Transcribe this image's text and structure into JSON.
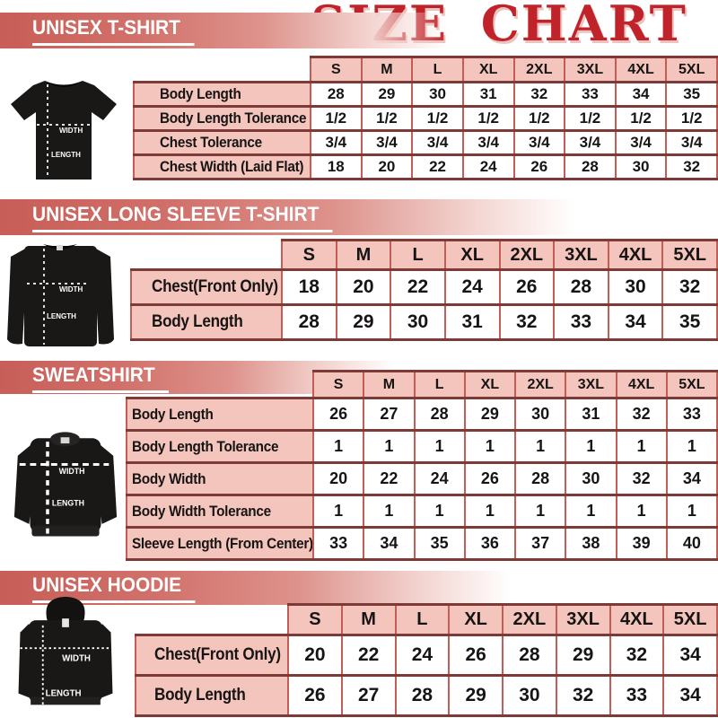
{
  "title": "SIZE CHART",
  "sizes": [
    "S",
    "M",
    "L",
    "XL",
    "2XL",
    "3XL",
    "4XL",
    "5XL"
  ],
  "labels": {
    "width": "WIDTH",
    "length": "LENGTH"
  },
  "colors": {
    "title_red": "#c0232a",
    "banner_red": "#c75e57",
    "cell_pink": "#f4c5bc",
    "grid_red": "#c35d56",
    "grid_dark": "#7e3a36",
    "garment_black": "#1a1717"
  },
  "sections": [
    {
      "id": "unisex-t-shirt",
      "banner": "UNISEX T-SHIRT",
      "garment": "t-shirt",
      "rows": [
        {
          "label": "Body Length",
          "values": [
            "28",
            "29",
            "30",
            "31",
            "32",
            "33",
            "34",
            "35"
          ]
        },
        {
          "label": "Body Length Tolerance",
          "values": [
            "1/2",
            "1/2",
            "1/2",
            "1/2",
            "1/2",
            "1/2",
            "1/2",
            "1/2"
          ]
        },
        {
          "label": "Chest Tolerance",
          "values": [
            "3/4",
            "3/4",
            "3/4",
            "3/4",
            "3/4",
            "3/4",
            "3/4",
            "3/4"
          ]
        },
        {
          "label": "Chest Width (Laid Flat)",
          "values": [
            "18",
            "20",
            "22",
            "24",
            "26",
            "28",
            "30",
            "32"
          ]
        }
      ]
    },
    {
      "id": "unisex-long-sleeve-t-shirt",
      "banner": "UNISEX LONG SLEEVE T-SHIRT",
      "garment": "long-sleeve",
      "rows": [
        {
          "label": "Chest(Front Only)",
          "values": [
            "18",
            "20",
            "22",
            "24",
            "26",
            "28",
            "30",
            "32"
          ]
        },
        {
          "label": "Body Length",
          "values": [
            "28",
            "29",
            "30",
            "31",
            "32",
            "33",
            "34",
            "35"
          ]
        }
      ]
    },
    {
      "id": "sweatshirt",
      "banner": "SWEATSHIRT",
      "garment": "sweatshirt",
      "rows": [
        {
          "label": "Body Length",
          "values": [
            "26",
            "27",
            "28",
            "29",
            "30",
            "31",
            "32",
            "33"
          ]
        },
        {
          "label": "Body Length Tolerance",
          "values": [
            "1",
            "1",
            "1",
            "1",
            "1",
            "1",
            "1",
            "1"
          ]
        },
        {
          "label": "Body Width",
          "values": [
            "20",
            "22",
            "24",
            "26",
            "28",
            "30",
            "32",
            "34"
          ]
        },
        {
          "label": "Body Width Tolerance",
          "values": [
            "1",
            "1",
            "1",
            "1",
            "1",
            "1",
            "1",
            "1"
          ]
        },
        {
          "label": "Sleeve Length (From Center)",
          "values": [
            "33",
            "34",
            "35",
            "36",
            "37",
            "38",
            "39",
            "40"
          ]
        }
      ]
    },
    {
      "id": "unisex-hoodie",
      "banner": "UNISEX HOODIE",
      "garment": "hoodie",
      "rows": [
        {
          "label": "Chest(Front Only)",
          "values": [
            "20",
            "22",
            "24",
            "26",
            "28",
            "29",
            "32",
            "34"
          ]
        },
        {
          "label": "Body Length",
          "values": [
            "26",
            "27",
            "28",
            "29",
            "30",
            "32",
            "33",
            "34"
          ]
        }
      ]
    }
  ]
}
